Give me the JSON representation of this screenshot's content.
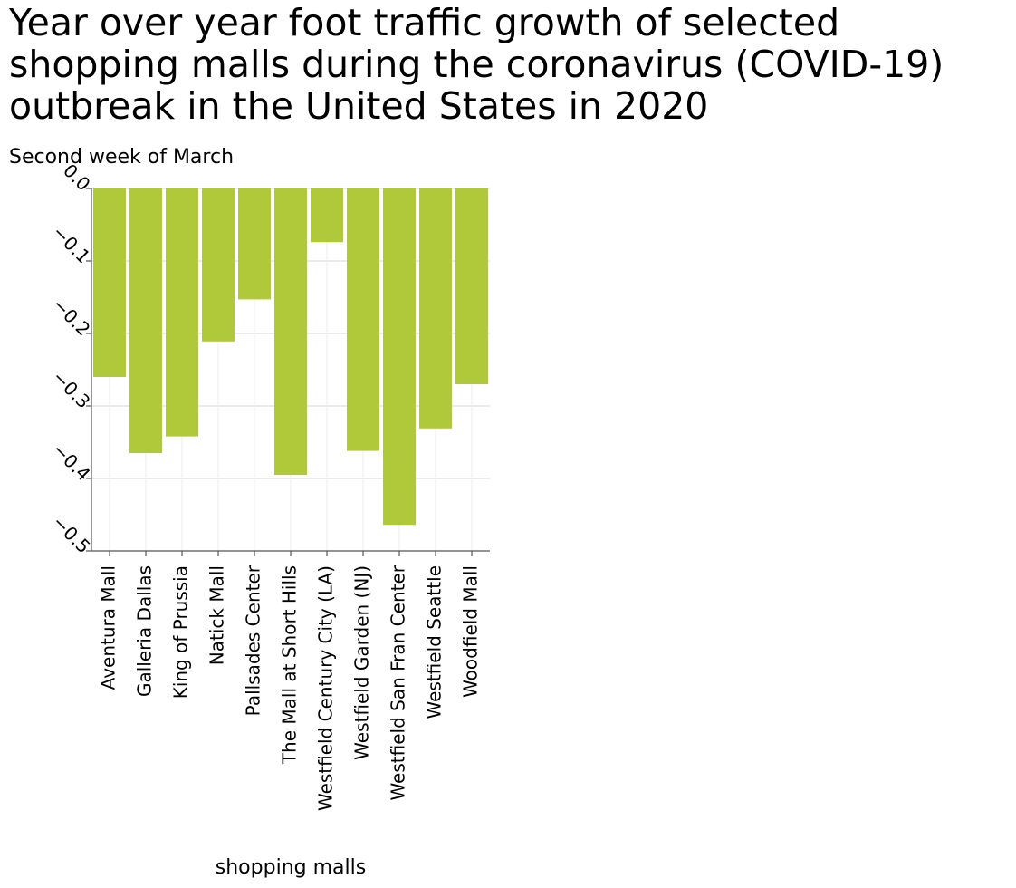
{
  "chart_data": {
    "type": "bar",
    "title_lines": [
      "Year over year foot traffic growth of selected",
      "shopping malls during the coronavirus (COVID-19)",
      "outbreak in the United States in 2020"
    ],
    "ylabel": "Second week of March",
    "xlabel": "shopping malls",
    "categories": [
      "Aventura Mall",
      "Galleria Dallas",
      "King of Prussia",
      "Natick Mall",
      "Pallsades Center",
      "The Mall at Short Hills",
      "Westfield Century City (LA)",
      "Westfield Garden (NJ)",
      "Westfield San Fran Center",
      "Westfield Seattle",
      "Woodfield Mall"
    ],
    "values": [
      -0.26,
      -0.365,
      -0.342,
      -0.211,
      -0.153,
      -0.395,
      -0.074,
      -0.362,
      -0.464,
      -0.331,
      -0.27
    ],
    "ylim": [
      -0.5,
      0.0
    ],
    "yticks": [
      0.0,
      -0.1,
      -0.2,
      -0.3,
      -0.4,
      -0.5
    ],
    "ytick_labels": [
      "0.0",
      "−0.1",
      "−0.2",
      "−0.3",
      "−0.4",
      "−0.5"
    ],
    "bar_color": "#b0c93a",
    "gridlines": true
  }
}
